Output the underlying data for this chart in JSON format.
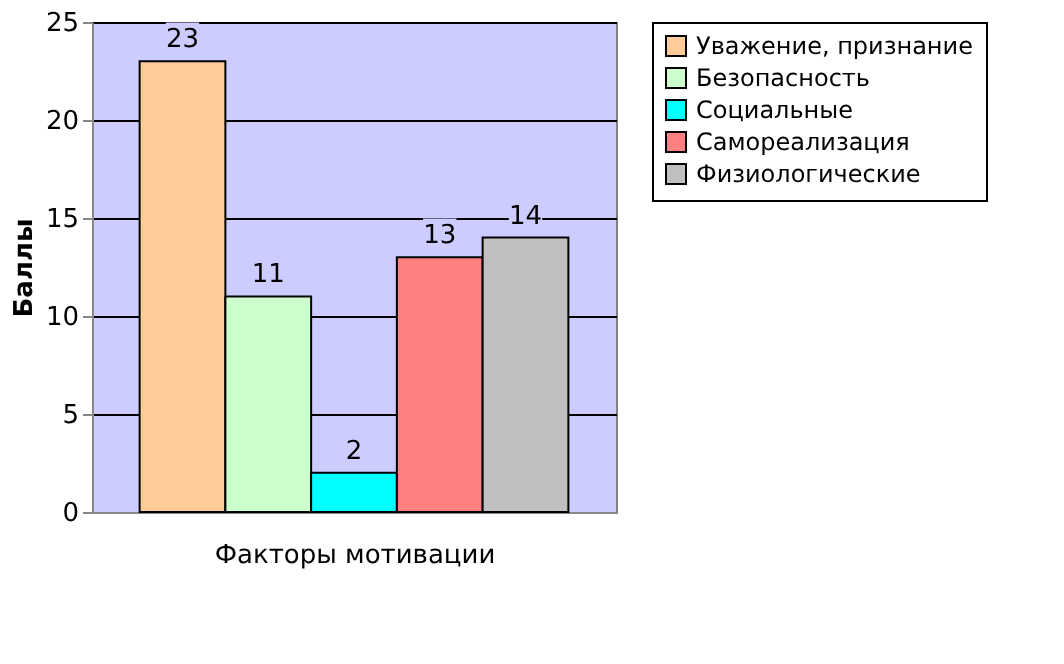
{
  "chart_data": {
    "type": "bar",
    "xlabel": "Факторы мотивации",
    "ylabel": "Баллы",
    "categories": [
      null
    ],
    "series": [
      {
        "name": "Уважение, признание",
        "color": "#ffcc99",
        "values": [
          23
        ]
      },
      {
        "name": "Безопасность",
        "color": "#ccffcc",
        "values": [
          11
        ]
      },
      {
        "name": "Социальные",
        "color": "#00ffff",
        "values": [
          2
        ]
      },
      {
        "name": "Самореализация",
        "color": "#ff8080",
        "values": [
          13
        ]
      },
      {
        "name": "Физиологические",
        "color": "#c0c0c0",
        "values": [
          14
        ]
      }
    ],
    "ylim": [
      0,
      25
    ],
    "yticks": [
      0,
      5,
      10,
      15,
      20,
      25
    ],
    "grid": "y",
    "legend": "right",
    "data_labels": true,
    "tick_labels": "y"
  }
}
